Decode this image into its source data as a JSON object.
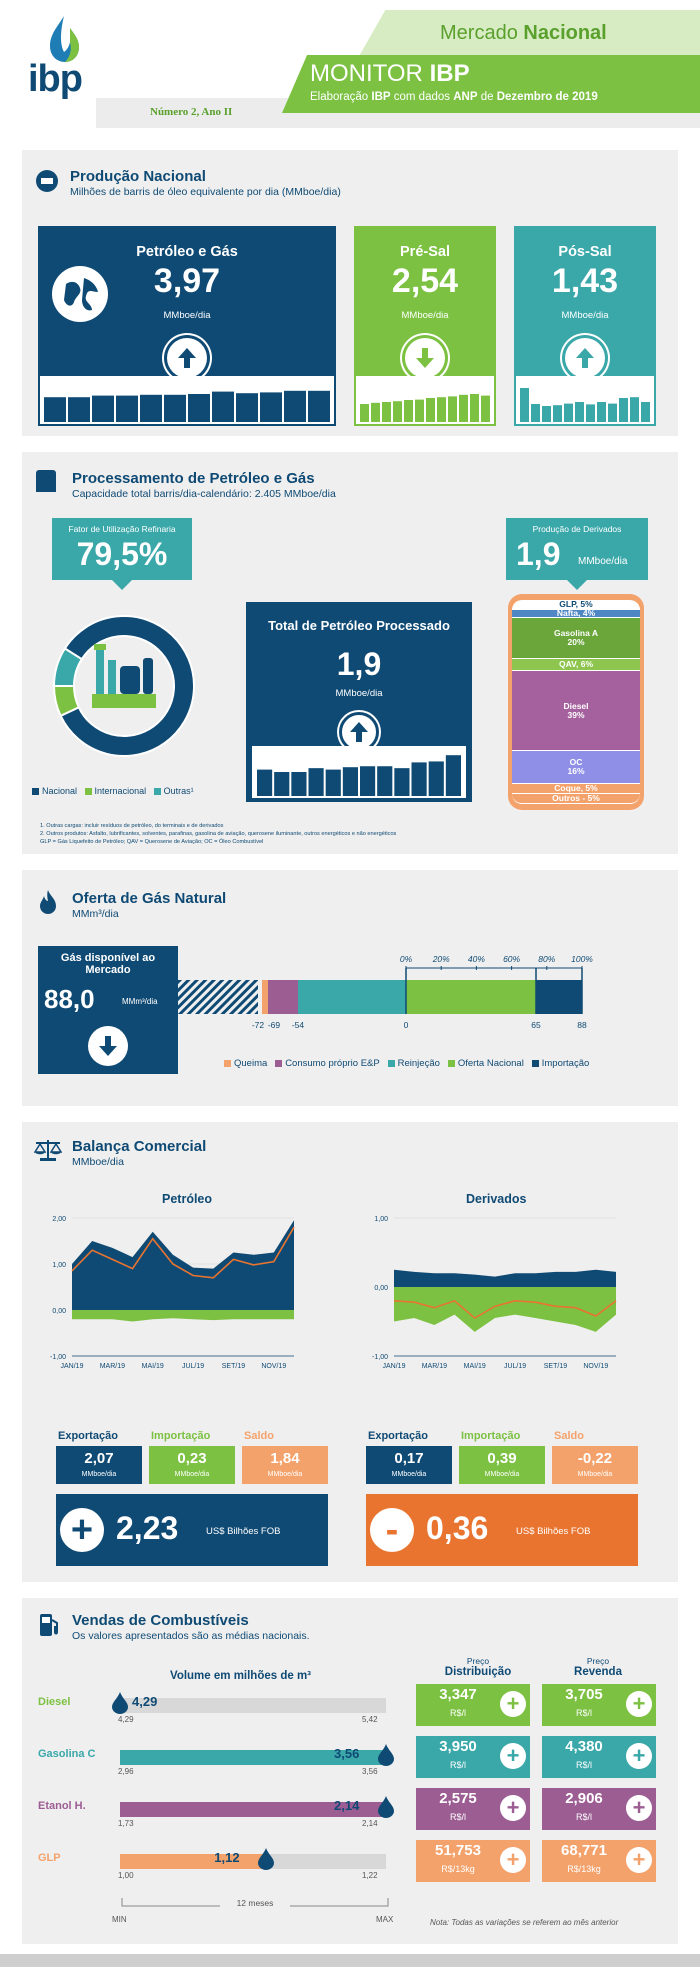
{
  "header": {
    "logo": "ibp",
    "mercado": "Mercado",
    "nacional": "Nacional",
    "monitor": "MONITOR",
    "monitor_bold": "IBP",
    "elab_pre": "Elaboração",
    "elab_ibp": "IBP",
    "elab_mid": "com dados",
    "elab_anp": "ANP",
    "elab_de": "de",
    "elab_date": "Dezembro de 2019",
    "edition": "Número 2, Ano II"
  },
  "producao": {
    "title": "Produção Nacional",
    "subtitle": "Milhões de barris de óleo equivalente por dia (MMboe/dia)",
    "cards": [
      {
        "title": "Petróleo e Gás",
        "value": "3,97",
        "unit": "MMboe/dia",
        "trend": "up",
        "color": "#0f4a74",
        "bars": [
          0.62,
          0.62,
          0.66,
          0.66,
          0.68,
          0.68,
          0.7,
          0.76,
          0.72,
          0.74,
          0.78,
          0.78
        ]
      },
      {
        "title": "Pré-Sal",
        "value": "2,54",
        "unit": "MMboe/dia",
        "trend": "down",
        "color": "#7cc142",
        "bars": [
          0.45,
          0.48,
          0.5,
          0.52,
          0.55,
          0.56,
          0.6,
          0.62,
          0.64,
          0.68,
          0.7,
          0.66
        ]
      },
      {
        "title": "Pós-Sal",
        "value": "1,43",
        "unit": "MMboe/dia",
        "trend": "up",
        "color": "#3aa7a9",
        "bars": [
          0.85,
          0.45,
          0.4,
          0.42,
          0.46,
          0.5,
          0.44,
          0.5,
          0.46,
          0.6,
          0.62,
          0.5
        ]
      }
    ]
  },
  "processamento": {
    "title": "Processamento  de Petróleo e Gás",
    "subtitle": "Capacidade total barris/dia-calendário: 2.405 MMboe/dia",
    "fator_label": "Fator de Utilização Refinaria",
    "fator_value": "79,5%",
    "donut": {
      "nacional": 0.84,
      "internacional": 0.07,
      "outras": 0.09
    },
    "legend": [
      "Nacional",
      "Internacional",
      "Outras¹"
    ],
    "total_title": "Total de Petróleo Processado",
    "total_value": "1,9",
    "total_unit": "MMboe/dia",
    "total_bars": [
      0.55,
      0.5,
      0.5,
      0.58,
      0.55,
      0.6,
      0.62,
      0.62,
      0.58,
      0.7,
      0.72,
      0.85
    ],
    "derivados_label": "Produção de Derivados",
    "derivados_value": "1,9",
    "derivados_unit": "MMboe/dia",
    "barrel": [
      {
        "label": "GLP, 5%",
        "share": 5,
        "color": "#ffffff"
      },
      {
        "label": "Nafta, 4%",
        "share": 4,
        "color": "#4f87c5"
      },
      {
        "label": "Gasolina A\n20%",
        "share": 20,
        "color": "#6aa63a"
      },
      {
        "label": "QAV, 6%",
        "share": 6,
        "color": "#8dc54f"
      },
      {
        "label": "Diesel\n39%",
        "share": 39,
        "color": "#a4619d"
      },
      {
        "label": "OC\n16%",
        "share": 16,
        "color": "#8f8fe8"
      },
      {
        "label": "Coque, 5%",
        "share": 5,
        "color": "#f4a26b"
      },
      {
        "label": "Outros - 5%",
        "share": 5,
        "color": "#f4a26b"
      }
    ],
    "footnote1": "1. Outras cargas: incluir resíduos de petróleo, do terminais e de derivados",
    "footnote2": "2. Outros produtos: Asfalto, lubrificantes, solventes, parafinas, gasolina de aviação, querosene iluminante, outros energéticos e não energéticos",
    "footnote3": "GLP = Gás Liquefeito de Petróleo; QAV = Querosene de Aviação; OC = Óleo Combustível"
  },
  "gas": {
    "title": "Oferta de Gás Natural",
    "subtitle": "MMm³/dia",
    "disp_label": "Gás disponível ao Mercado",
    "disp_value": "88,0",
    "disp_unit": "MMm³/dia",
    "pct_ticks": [
      "0%",
      "20%",
      "40%",
      "60%",
      "80%",
      "100%"
    ],
    "value_ticks": [
      "-72",
      "-69",
      "-54",
      "0",
      "65",
      "88"
    ],
    "segments": {
      "queima": [
        -72,
        -69
      ],
      "consumo": [
        -69,
        -54
      ],
      "reinjecao": [
        -54,
        0
      ],
      "oferta": [
        0,
        65
      ],
      "importacao": [
        65,
        88
      ]
    },
    "legend": [
      "Queima",
      "Consumo próprio E&P",
      "Reinjeção",
      "Oferta Nacional",
      "Importação"
    ]
  },
  "balanca": {
    "title": "Balança Comercial",
    "subtitle": "MMboe/dia",
    "petroleo_title": "Petróleo",
    "derivados_title": "Derivados",
    "months": [
      "JAN/19",
      "MAR/19",
      "MAI/19",
      "JUL/19",
      "SET/19",
      "NOV/19"
    ],
    "pet_y": [
      "2,00",
      "1,00",
      "0,00",
      "-1,00"
    ],
    "der_y": [
      "1,00",
      "0,00",
      "-1,00"
    ],
    "petroleo_series": {
      "export": [
        1.0,
        1.5,
        1.35,
        1.15,
        1.7,
        1.2,
        0.92,
        0.9,
        1.25,
        1.2,
        1.25,
        1.95
      ],
      "import": [
        -0.2,
        -0.2,
        -0.2,
        -0.25,
        -0.2,
        -0.18,
        -0.2,
        -0.22,
        -0.2,
        -0.2,
        -0.2,
        -0.2
      ],
      "saldo": [
        0.85,
        1.3,
        1.1,
        0.9,
        1.55,
        1.0,
        0.75,
        0.7,
        1.1,
        0.98,
        1.05,
        1.8
      ]
    },
    "derivados_series": {
      "export": [
        0.25,
        0.22,
        0.2,
        0.2,
        0.18,
        0.15,
        0.2,
        0.2,
        0.22,
        0.22,
        0.25,
        0.22
      ],
      "import": [
        -0.5,
        -0.45,
        -0.55,
        -0.4,
        -0.65,
        -0.45,
        -0.4,
        -0.45,
        -0.5,
        -0.55,
        -0.65,
        -0.4
      ],
      "saldo": [
        -0.2,
        -0.22,
        -0.3,
        -0.2,
        -0.45,
        -0.28,
        -0.2,
        -0.22,
        -0.28,
        -0.3,
        -0.42,
        -0.2
      ]
    },
    "pet": {
      "exp_label": "Exportação",
      "imp_label": "Importação",
      "saldo_label": "Saldo",
      "exp": "2,07",
      "imp": "0,23",
      "saldo": "1,84",
      "unit": "MMboe/dia",
      "fob_sign": "+",
      "fob_value": "2,23",
      "fob_unit": "US$ Bilhões FOB"
    },
    "der": {
      "exp_label": "Exportação",
      "imp_label": "Importação",
      "saldo_label": "Saldo",
      "exp": "0,17",
      "imp": "0,39",
      "saldo": "-0,22",
      "unit": "MMboe/dia",
      "fob_sign": "-",
      "fob_value": "0,36",
      "fob_unit": "US$ Bilhões FOB"
    }
  },
  "vendas": {
    "title": "Vendas de Combustíveis",
    "subtitle": "Os valores apresentados são as médias nacionais.",
    "vol_title": "Volume em milhões de m³",
    "preco_label": "Preço",
    "dist_label": "Distribuição",
    "rev_label": "Revenda",
    "rows": [
      {
        "name": "Diesel",
        "color": "#7cc142",
        "value": "4,29",
        "min": "4,29",
        "max": "5,42",
        "pos": 0.0,
        "dist": "3,347",
        "dist_unit": "R$/l",
        "rev": "3,705",
        "rev_unit": "R$/l"
      },
      {
        "name": "Gasolina C",
        "color": "#3aa7a9",
        "value": "3,56",
        "min": "2,96",
        "max": "3,56",
        "pos": 1.0,
        "dist": "3,950",
        "dist_unit": "R$/l",
        "rev": "4,380",
        "rev_unit": "R$/l"
      },
      {
        "name": "Etanol H.",
        "color": "#9c5d93",
        "value": "2,14",
        "min": "1,73",
        "max": "2,14",
        "pos": 1.0,
        "dist": "2,575",
        "dist_unit": "R$/l",
        "rev": "2,906",
        "rev_unit": "R$/l"
      },
      {
        "name": "GLP",
        "color": "#f4a26b",
        "value": "1,12",
        "min": "1,00",
        "max": "1,22",
        "pos": 0.55,
        "dist": "51,753",
        "dist_unit": "R$/13kg",
        "rev": "68,771",
        "rev_unit": "R$/13kg"
      }
    ],
    "meses": "12 meses",
    "min": "MIN",
    "max": "MAX",
    "nota": "Nota: Todas as variações se referem ao mês anterior"
  }
}
